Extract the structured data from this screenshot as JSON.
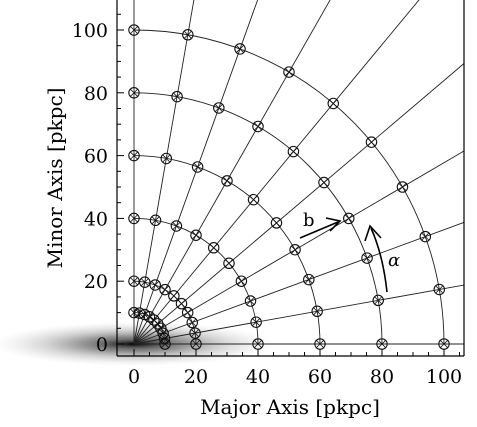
{
  "chart_data": {
    "type": "diagram",
    "xlabel": "Major Axis [pkpc]",
    "ylabel": "Minor Axis [pkpc]",
    "xlim": [
      -4,
      109
    ],
    "ylim": [
      -3,
      107
    ],
    "x_ticks": [
      "0",
      "20",
      "40",
      "60",
      "80",
      "100"
    ],
    "y_ticks": [
      "0",
      "20",
      "40",
      "60",
      "80",
      "100"
    ],
    "x_tick_values": [
      0,
      20,
      40,
      60,
      80,
      100
    ],
    "y_tick_values": [
      0,
      20,
      40,
      60,
      80,
      100
    ],
    "grid_radii": [
      10,
      20,
      40,
      60,
      80,
      100
    ],
    "grid_angles_deg": [
      0,
      10,
      20,
      30,
      40,
      50,
      60,
      70,
      80,
      90
    ],
    "annotations": {
      "b_label": "b",
      "alpha_label": "α"
    },
    "colors": {
      "grid_line": "#222222",
      "marker_edge": "#111111",
      "galaxy": "#555555"
    }
  }
}
